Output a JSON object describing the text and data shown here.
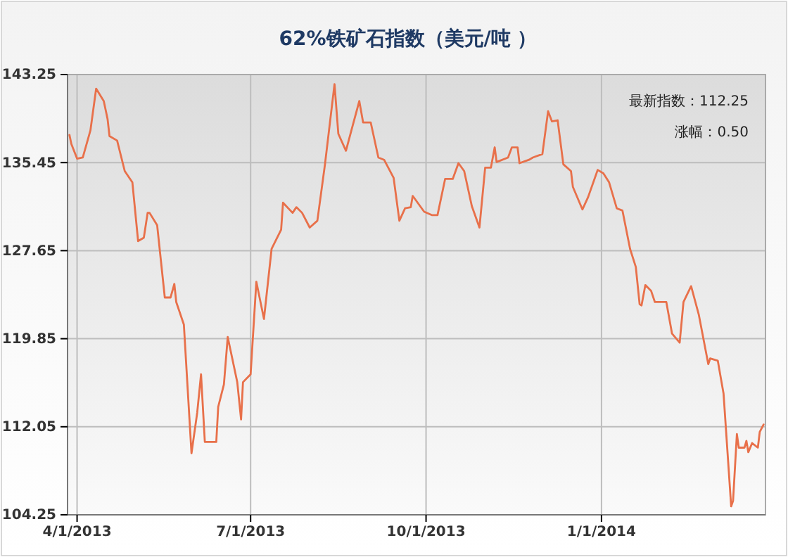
{
  "chart_data": {
    "type": "line",
    "title": "62%铁矿石指数（美元/吨 ）",
    "annotations": [
      "最新指数：112.25",
      "涨幅：0.50"
    ],
    "x": [
      "2013-03-28",
      "2013-03-29",
      "2013-04-01",
      "2013-04-04",
      "2013-04-08",
      "2013-04-11",
      "2013-04-15",
      "2013-04-17",
      "2013-04-18",
      "2013-04-22",
      "2013-04-26",
      "2013-04-30",
      "2013-05-03",
      "2013-05-06",
      "2013-05-08",
      "2013-05-09",
      "2013-05-13",
      "2013-05-17",
      "2013-05-20",
      "2013-05-22",
      "2013-05-23",
      "2013-05-27",
      "2013-05-31",
      "2013-06-03",
      "2013-06-05",
      "2013-06-07",
      "2013-06-13",
      "2013-06-14",
      "2013-06-17",
      "2013-06-19",
      "2013-06-24",
      "2013-06-26",
      "2013-06-27",
      "2013-07-01",
      "2013-07-04",
      "2013-07-08",
      "2013-07-12",
      "2013-07-17",
      "2013-07-18",
      "2013-07-23",
      "2013-07-25",
      "2013-07-28",
      "2013-08-01",
      "2013-08-05",
      "2013-08-09",
      "2013-08-14",
      "2013-08-16",
      "2013-08-20",
      "2013-08-23",
      "2013-08-27",
      "2013-08-29",
      "2013-09-02",
      "2013-09-06",
      "2013-09-09",
      "2013-09-14",
      "2013-09-17",
      "2013-09-20",
      "2013-09-23",
      "2013-09-24",
      "2013-09-30",
      "2013-10-04",
      "2013-10-07",
      "2013-10-11",
      "2013-10-15",
      "2013-10-18",
      "2013-10-21",
      "2013-10-25",
      "2013-10-29",
      "2013-11-01",
      "2013-11-04",
      "2013-11-06",
      "2013-11-07",
      "2013-11-13",
      "2013-11-15",
      "2013-11-18",
      "2013-11-19",
      "2013-11-24",
      "2013-11-26",
      "2013-12-01",
      "2013-12-04",
      "2013-12-06",
      "2013-12-09",
      "2013-12-12",
      "2013-12-16",
      "2013-12-17",
      "2013-12-22",
      "2013-12-25",
      "2013-12-30",
      "2014-01-02",
      "2014-01-05",
      "2014-01-09",
      "2014-01-12",
      "2014-01-16",
      "2014-01-19",
      "2014-01-21",
      "2014-01-22",
      "2014-01-24",
      "2014-01-27",
      "2014-01-29",
      "2014-02-04",
      "2014-02-07",
      "2014-02-11",
      "2014-02-13",
      "2014-02-17",
      "2014-02-21",
      "2014-02-26",
      "2014-02-27",
      "2014-03-03",
      "2014-03-06",
      "2014-03-10",
      "2014-03-11",
      "2014-03-13",
      "2014-03-14",
      "2014-03-17",
      "2014-03-18",
      "2014-03-19",
      "2014-03-21",
      "2014-03-24",
      "2014-03-25",
      "2014-03-27"
    ],
    "series": [
      {
        "color": "#e8704a",
        "values": [
          137.9,
          137.1,
          135.8,
          135.9,
          138.3,
          142.0,
          140.9,
          139.3,
          137.8,
          137.4,
          134.7,
          133.7,
          128.5,
          128.8,
          131.0,
          131.0,
          129.9,
          123.5,
          123.5,
          124.7,
          123.1,
          121.1,
          109.7,
          113.3,
          116.7,
          110.7,
          110.7,
          113.8,
          115.8,
          120.0,
          116.0,
          112.7,
          116.0,
          116.7,
          124.9,
          121.6,
          127.8,
          129.5,
          131.9,
          131.0,
          131.5,
          131.0,
          129.7,
          130.3,
          135.3,
          142.4,
          138.0,
          136.5,
          138.4,
          140.9,
          139.0,
          139.0,
          135.9,
          135.7,
          134.1,
          130.3,
          131.4,
          131.5,
          132.5,
          131.1,
          130.8,
          130.8,
          134.0,
          134.0,
          135.4,
          134.7,
          131.6,
          129.7,
          135.0,
          135.0,
          136.8,
          135.5,
          135.9,
          136.8,
          136.8,
          135.4,
          135.7,
          135.9,
          136.2,
          140.0,
          139.1,
          139.2,
          135.3,
          134.7,
          133.3,
          131.3,
          132.4,
          134.8,
          134.5,
          133.7,
          131.4,
          131.2,
          127.8,
          126.2,
          122.9,
          122.8,
          124.6,
          124.1,
          123.1,
          123.1,
          120.3,
          119.5,
          123.1,
          124.5,
          122.0,
          117.6,
          118.1,
          117.9,
          115.0,
          105.0,
          105.5,
          111.4,
          110.2,
          110.2,
          110.8,
          109.8,
          110.6,
          110.2,
          111.6,
          112.25
        ]
      }
    ],
    "xlim": [
      "2013-03-27",
      "2014-03-28"
    ],
    "xticks": [
      {
        "value": "2013-04-01",
        "label": "4/1/2013"
      },
      {
        "value": "2013-07-01",
        "label": "7/1/2013"
      },
      {
        "value": "2013-10-01",
        "label": "10/1/2013"
      },
      {
        "value": "2014-01-01",
        "label": "1/1/2014"
      }
    ],
    "ylim": [
      104.25,
      143.25
    ],
    "yticks": [
      {
        "value": 104.25,
        "label": "104.25"
      },
      {
        "value": 112.05,
        "label": "112.05"
      },
      {
        "value": 119.85,
        "label": "119.85"
      },
      {
        "value": 127.65,
        "label": "127.65"
      },
      {
        "value": 135.45,
        "label": "135.45"
      },
      {
        "value": 143.25,
        "label": "143.25"
      }
    ],
    "grid": true,
    "marker": "none",
    "line_style": "solid"
  }
}
